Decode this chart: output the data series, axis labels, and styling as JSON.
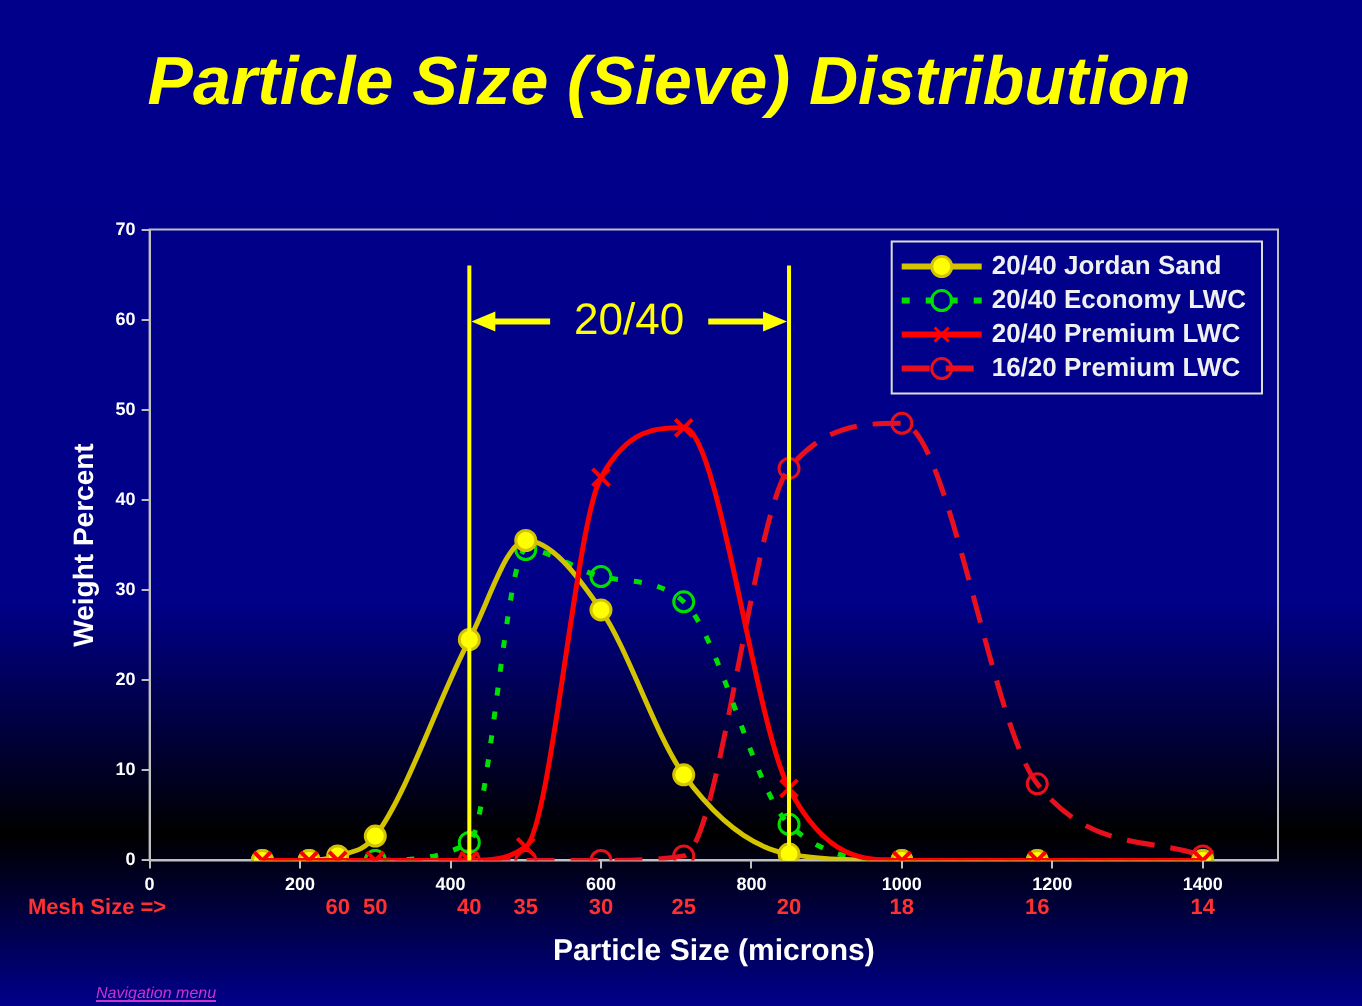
{
  "chart_data": {
    "type": "line",
    "title": "Particle Size (Sieve) Distribution",
    "xlabel": "Particle Size (microns)",
    "ylabel": "Weight Percent",
    "x": [
      150,
      212,
      250,
      300,
      425,
      500,
      600,
      710,
      850,
      1000,
      1180,
      1400
    ],
    "series": [
      {
        "name": "20/40 Jordan Sand",
        "color": "#d4c400",
        "marker": "circle",
        "line_style": "solid",
        "values": [
          0,
          0,
          0.5,
          2.7,
          24.5,
          35.5,
          27.8,
          9.5,
          0.7,
          0,
          0,
          0
        ]
      },
      {
        "name": "20/40 Economy LWC",
        "color": "#00e000",
        "marker": "circle",
        "line_style": "dotted",
        "values": [
          0,
          0,
          0,
          0,
          2,
          34.5,
          31.5,
          28.7,
          4,
          0,
          0,
          0
        ]
      },
      {
        "name": "20/40 Premium LWC",
        "color": "#ff0000",
        "marker": "cross",
        "line_style": "solid",
        "values": [
          0,
          0,
          0,
          0,
          0,
          1.5,
          42.5,
          48,
          8,
          0,
          0,
          0
        ]
      },
      {
        "name": "16/20 Premium LWC",
        "color": "#e8101c",
        "marker": "circle",
        "line_style": "dashed",
        "values": [
          0,
          0,
          0,
          0,
          0,
          0,
          0,
          0.5,
          43.5,
          48.5,
          8.5,
          0.5
        ]
      }
    ],
    "xlim": [
      0,
      1500
    ],
    "xticks": [
      0,
      200,
      400,
      600,
      800,
      1000,
      1200,
      1400
    ],
    "ylim": [
      0,
      70
    ],
    "yticks": [
      0,
      10,
      20,
      30,
      40,
      50,
      60,
      70
    ],
    "ref_lines": [
      {
        "axis": "x",
        "value": 425,
        "color": "#ffff00"
      },
      {
        "axis": "x",
        "value": 850,
        "color": "#ffff00"
      }
    ],
    "annotations": [
      "20/40",
      "Mesh Size =>",
      "60",
      "50",
      "40",
      "35",
      "30",
      "25",
      "20",
      "18",
      "16",
      "14",
      "Navigation menu"
    ],
    "grid": false,
    "legend": "top right"
  }
}
